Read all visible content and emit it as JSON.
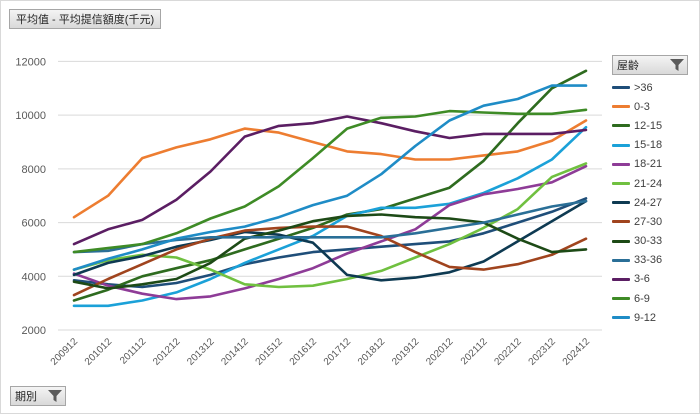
{
  "value_field": "平均值 - 平均提信額度(千元)",
  "axis_field": "期別",
  "legend_field": "屋齡",
  "chart_data": {
    "type": "line",
    "x": [
      "200912",
      "201012",
      "201112",
      "201212",
      "201312",
      "201412",
      "201512",
      "201612",
      "201712",
      "201812",
      "201912",
      "202012",
      "202112",
      "202212",
      "202312",
      "202412"
    ],
    "yticks": [
      2000,
      4000,
      6000,
      8000,
      10000,
      12000
    ],
    "ylim": [
      2000,
      12500
    ],
    "grid": true,
    "legend_position": "right",
    "series": [
      {
        "name": ">36",
        "color": "#1f4e79",
        "values": [
          3850,
          3700,
          3600,
          3750,
          4050,
          4450,
          4700,
          4900,
          5000,
          5100,
          5200,
          5300,
          5600,
          6000,
          6400,
          6900
        ]
      },
      {
        "name": "0-3",
        "color": "#ed7d31",
        "values": [
          6200,
          7000,
          8400,
          8800,
          9100,
          9500,
          9350,
          9000,
          8650,
          8550,
          8350,
          8350,
          8500,
          8650,
          9050,
          9800
        ]
      },
      {
        "name": "12-15",
        "color": "#2e6b1f",
        "values": [
          3100,
          3500,
          4000,
          4300,
          4600,
          5000,
          5400,
          5800,
          6300,
          6500,
          6900,
          7300,
          8300,
          9700,
          11000,
          11650
        ]
      },
      {
        "name": "15-18",
        "color": "#1ba1d8",
        "values": [
          2900,
          2900,
          3100,
          3400,
          3900,
          4500,
          5000,
          5500,
          6250,
          6550,
          6550,
          6700,
          7100,
          7650,
          8350,
          9550
        ]
      },
      {
        "name": "18-21",
        "color": "#8e3c97",
        "values": [
          4100,
          3650,
          3350,
          3150,
          3250,
          3550,
          3900,
          4300,
          4850,
          5300,
          5750,
          6650,
          7050,
          7250,
          7500,
          8100
        ]
      },
      {
        "name": "21-24",
        "color": "#70c040",
        "values": [
          4250,
          4600,
          4800,
          4700,
          4250,
          3700,
          3600,
          3650,
          3900,
          4200,
          4700,
          5200,
          5800,
          6500,
          7700,
          8200
        ]
      },
      {
        "name": "24-27",
        "color": "#0e3a52",
        "values": [
          4050,
          4500,
          4750,
          5100,
          5350,
          5650,
          5550,
          5250,
          4050,
          3850,
          3950,
          4150,
          4550,
          5300,
          6050,
          6800
        ]
      },
      {
        "name": "27-30",
        "color": "#a0441e",
        "values": [
          3300,
          3900,
          4450,
          5000,
          5400,
          5700,
          5800,
          5850,
          5850,
          5500,
          4900,
          4350,
          4250,
          4450,
          4800,
          5400
        ]
      },
      {
        "name": "30-33",
        "color": "#1d4a16",
        "values": [
          3800,
          3550,
          3700,
          3900,
          4500,
          5400,
          5700,
          6050,
          6250,
          6300,
          6200,
          6150,
          6000,
          5400,
          4900,
          5000
        ]
      },
      {
        "name": "33-36",
        "color": "#2a6f97",
        "values": [
          4900,
          4950,
          5200,
          5350,
          5450,
          5450,
          5450,
          5450,
          5450,
          5450,
          5600,
          5800,
          6000,
          6300,
          6600,
          6800
        ]
      },
      {
        "name": "3-6",
        "color": "#5b1e63",
        "values": [
          5200,
          5750,
          6100,
          6850,
          7900,
          9200,
          9600,
          9700,
          9950,
          9700,
          9400,
          9150,
          9300,
          9300,
          9300,
          9450
        ]
      },
      {
        "name": "6-9",
        "color": "#3e8b26",
        "values": [
          4900,
          5050,
          5200,
          5600,
          6150,
          6600,
          7350,
          8400,
          9500,
          9900,
          9950,
          10150,
          10100,
          10050,
          10050,
          10200
        ]
      },
      {
        "name": "9-12",
        "color": "#1f8cc6",
        "values": [
          4250,
          4650,
          5000,
          5400,
          5650,
          5850,
          6200,
          6650,
          7000,
          7800,
          8850,
          9800,
          10350,
          10600,
          11100,
          11100
        ]
      }
    ]
  }
}
